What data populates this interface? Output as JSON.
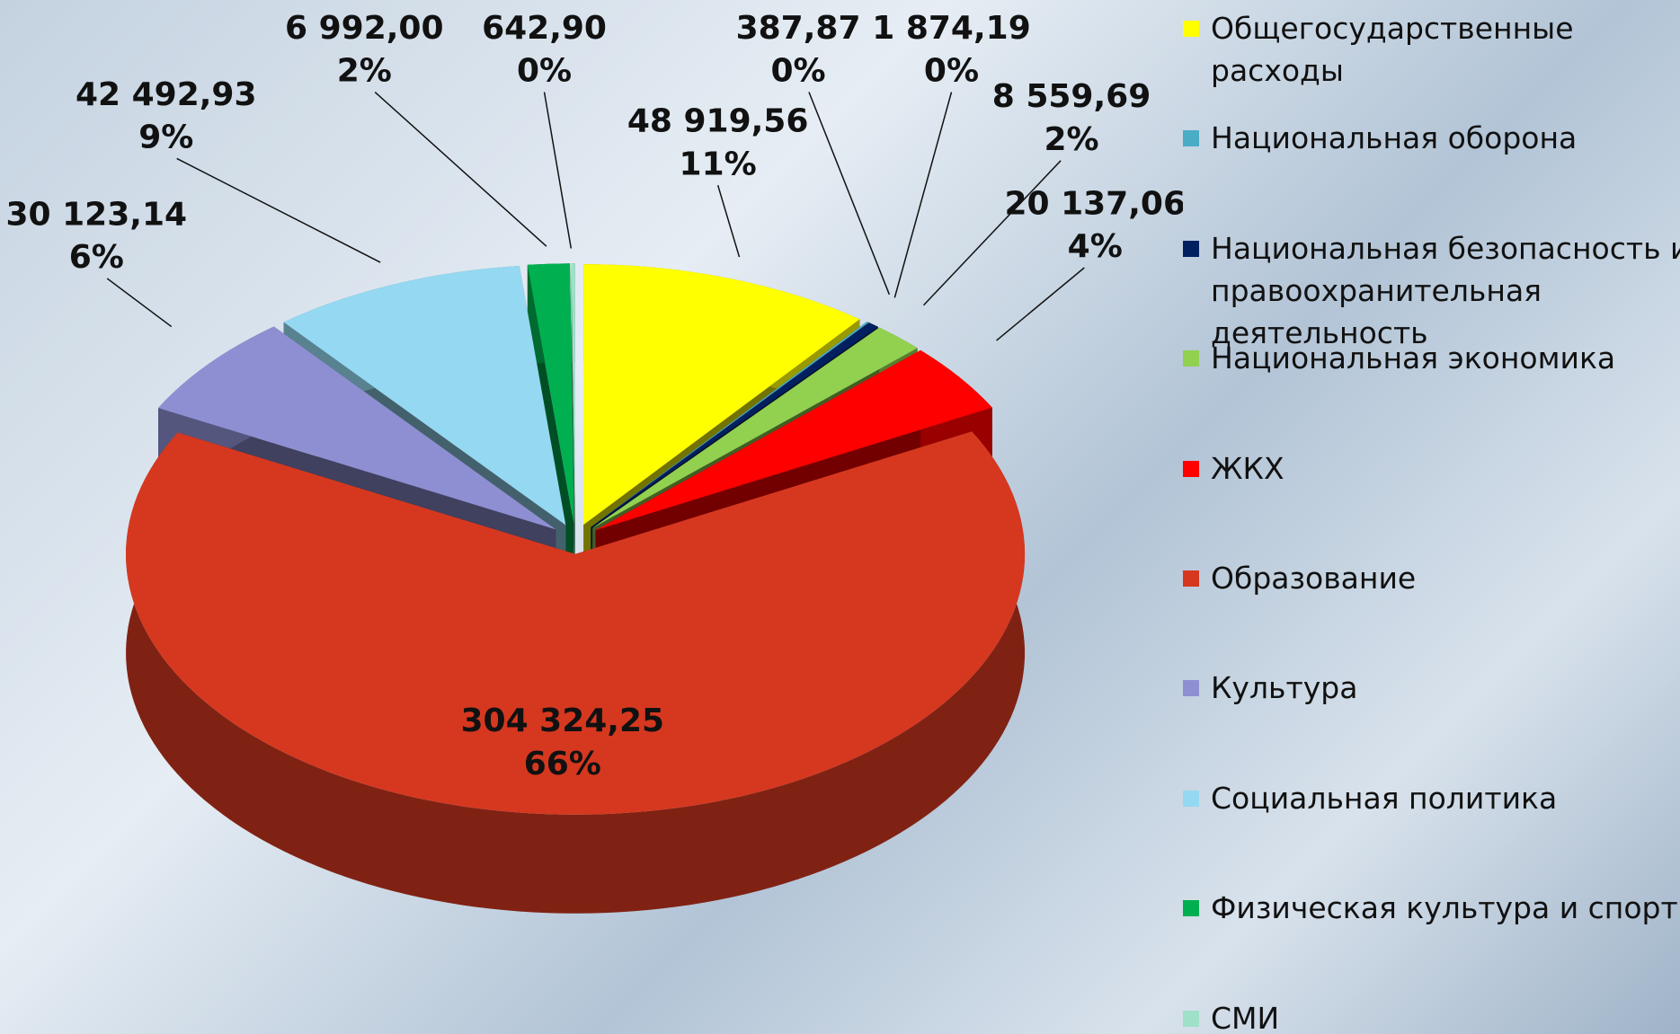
{
  "chart_data": {
    "type": "pie3d",
    "categories": [
      "Общегосударственные расходы",
      "Национальная оборона",
      "Национальная безопасность и правоохранительная деятельность",
      "Национальная экономика",
      "ЖКХ",
      "Образование",
      "Культура",
      "Социальная политика",
      "Физическая культура и спорт",
      "СМИ"
    ],
    "values": [
      48919.56,
      387.87,
      1874.19,
      8559.69,
      20137.06,
      304324.25,
      30123.14,
      42492.93,
      6992.0,
      642.9
    ],
    "value_labels": [
      "48 919,56",
      "387,87",
      "1 874,19",
      "8 559,69",
      "20 137,06",
      "304 324,25",
      "30 123,14",
      "42 492,93",
      "6 992,00",
      "642,90"
    ],
    "percent_labels": [
      "11%",
      "0%",
      "0%",
      "2%",
      "4%",
      "66%",
      "6%",
      "9%",
      "2%",
      "0%"
    ],
    "colors": [
      "#ffff00",
      "#4bacc6",
      "#002060",
      "#92d050",
      "#ff0000",
      "#d6381f",
      "#8e8fd2",
      "#94d8f2",
      "#00b050",
      "#9fe0c8"
    ]
  }
}
